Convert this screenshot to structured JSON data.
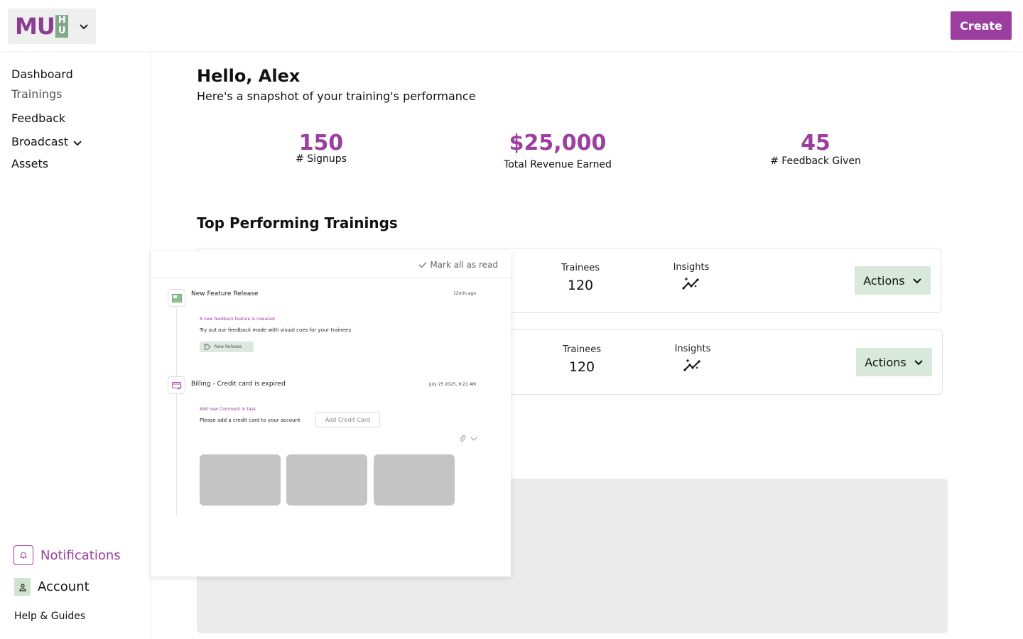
{
  "header": {
    "logo_text": "MU",
    "logo_hu_top": "H",
    "logo_hu_bottom": "U",
    "create_label": "Create"
  },
  "sidebar": {
    "items": [
      {
        "label": "Dashboard"
      },
      {
        "label": "Trainings"
      },
      {
        "label": "Feedback"
      },
      {
        "label": "Broadcast"
      },
      {
        "label": "Assets"
      }
    ],
    "notifications_label": "Notifications",
    "account_label": "Account",
    "help_label": "Help & Guides"
  },
  "main": {
    "greeting": "Hello, Alex",
    "subtitle": "Here's a snapshot of your training's performance",
    "stats": [
      {
        "value": "150",
        "label": "# Signups"
      },
      {
        "value": "$25,000",
        "label": "Total Revenue Earned"
      },
      {
        "value": "45",
        "label": "# Feedback Given"
      }
    ],
    "section_title": "Top Performing Trainings",
    "cards": [
      {
        "trainees_label": "Trainees",
        "trainees_value": "120",
        "insights_label": "Insights",
        "actions_label": "Actions"
      },
      {
        "trainees_label": "Trainees",
        "trainees_value": "120",
        "insights_label": "Insights",
        "actions_label": "Actions"
      }
    ]
  },
  "notifications_popover": {
    "mark_all_label": "Mark all as read",
    "items": [
      {
        "title": "New Feature Release",
        "time": "12min ago",
        "subtitle": "A new feedback feature is released",
        "body": "Try out our feedback mode with visual cues for your trainees",
        "tag": "New Release"
      },
      {
        "title": "Billing - Credit card is expired",
        "time": "July 25 2025, 9:21 AM",
        "subtitle": "Add new Comment in task",
        "body": "Please add a credit card to your account",
        "button": "Add Credit Card"
      }
    ]
  },
  "colors": {
    "brand_purple": "#9c3e9f",
    "brand_green": "#d8e8da",
    "placeholder_gray": "#c4c4c4"
  }
}
